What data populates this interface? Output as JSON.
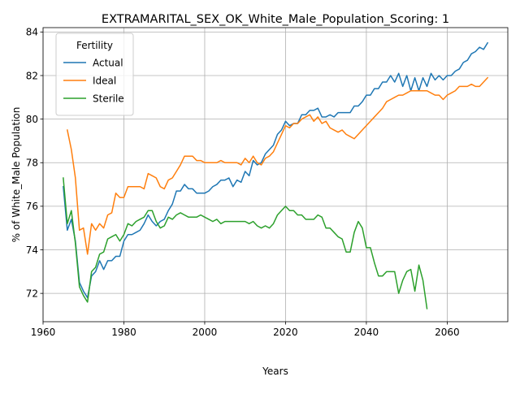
{
  "chart_data": {
    "type": "line",
    "title": "EXTRAMARITAL_SEX_OK_White_Male_Population_Scoring: 1",
    "xlabel": "Years",
    "ylabel": "% of White_Male Population",
    "xlim": [
      1960,
      2075
    ],
    "ylim": [
      70.7,
      84.2
    ],
    "xticks": [
      1960,
      1980,
      2000,
      2020,
      2040,
      2060
    ],
    "xtick_labels": [
      "1960",
      "1980",
      "2000",
      "2020",
      "2040",
      "2060"
    ],
    "yticks": [
      72,
      74,
      76,
      78,
      80,
      82,
      84
    ],
    "ytick_labels": [
      "72",
      "74",
      "76",
      "78",
      "80",
      "82",
      "84"
    ],
    "grid": true,
    "legend": {
      "title": "Fertility",
      "position": "upper-left"
    },
    "series": [
      {
        "name": "Actual",
        "color": "#1f77b4",
        "x": [
          1965,
          1966,
          1967,
          1968,
          1969,
          1970,
          1971,
          1972,
          1973,
          1974,
          1975,
          1976,
          1977,
          1978,
          1979,
          1980,
          1981,
          1982,
          1983,
          1984,
          1985,
          1986,
          1987,
          1988,
          1989,
          1990,
          1991,
          1992,
          1993,
          1994,
          1995,
          1996,
          1997,
          1998,
          1999,
          2000,
          2001,
          2002,
          2003,
          2004,
          2005,
          2006,
          2007,
          2008,
          2009,
          2010,
          2011,
          2012,
          2013,
          2014,
          2015,
          2016,
          2017,
          2018,
          2019,
          2020,
          2021,
          2022,
          2023,
          2024,
          2025,
          2026,
          2027,
          2028,
          2029,
          2030,
          2031,
          2032,
          2033,
          2034,
          2035,
          2036,
          2037,
          2038,
          2039,
          2040,
          2041,
          2042,
          2043,
          2044,
          2045,
          2046,
          2047,
          2048,
          2049,
          2050,
          2051,
          2052,
          2053,
          2054,
          2055,
          2056,
          2057,
          2058,
          2059,
          2060,
          2061,
          2062,
          2063,
          2064,
          2065,
          2066,
          2067,
          2068,
          2069,
          2070
        ],
        "y": [
          76.9,
          74.9,
          75.4,
          74.4,
          72.5,
          72.1,
          71.8,
          72.8,
          73.0,
          73.5,
          73.1,
          73.5,
          73.5,
          73.7,
          73.7,
          74.4,
          74.7,
          74.7,
          74.8,
          74.9,
          75.2,
          75.6,
          75.3,
          75.1,
          75.3,
          75.4,
          75.8,
          76.1,
          76.7,
          76.7,
          77.0,
          76.8,
          76.8,
          76.6,
          76.6,
          76.6,
          76.7,
          76.9,
          77.0,
          77.2,
          77.2,
          77.3,
          76.9,
          77.2,
          77.1,
          77.6,
          77.4,
          78.1,
          77.9,
          78.0,
          78.4,
          78.6,
          78.8,
          79.3,
          79.5,
          79.9,
          79.7,
          79.8,
          79.8,
          80.2,
          80.2,
          80.4,
          80.4,
          80.5,
          80.1,
          80.1,
          80.2,
          80.1,
          80.3,
          80.3,
          80.3,
          80.3,
          80.6,
          80.6,
          80.8,
          81.1,
          81.1,
          81.4,
          81.4,
          81.7,
          81.7,
          82.0,
          81.7,
          82.1,
          81.5,
          82.0,
          81.3,
          81.9,
          81.3,
          81.9,
          81.5,
          82.1,
          81.8,
          82.0,
          81.8,
          82.0,
          82.0,
          82.2,
          82.3,
          82.6,
          82.7,
          83.0,
          83.1,
          83.3,
          83.2,
          83.5
        ]
      },
      {
        "name": "Ideal",
        "color": "#ff7f0e",
        "x": [
          1966,
          1967,
          1968,
          1969,
          1970,
          1971,
          1972,
          1973,
          1974,
          1975,
          1976,
          1977,
          1978,
          1979,
          1980,
          1981,
          1982,
          1983,
          1984,
          1985,
          1986,
          1987,
          1988,
          1989,
          1990,
          1991,
          1992,
          1993,
          1994,
          1995,
          1996,
          1997,
          1998,
          1999,
          2000,
          2001,
          2002,
          2003,
          2004,
          2005,
          2006,
          2007,
          2008,
          2009,
          2010,
          2011,
          2012,
          2013,
          2014,
          2015,
          2016,
          2017,
          2018,
          2019,
          2020,
          2021,
          2022,
          2023,
          2024,
          2025,
          2026,
          2027,
          2028,
          2029,
          2030,
          2031,
          2032,
          2033,
          2034,
          2035,
          2036,
          2037,
          2038,
          2039,
          2040,
          2041,
          2042,
          2043,
          2044,
          2045,
          2046,
          2047,
          2048,
          2049,
          2050,
          2051,
          2052,
          2053,
          2054,
          2055,
          2056,
          2057,
          2058,
          2059,
          2060,
          2061,
          2062,
          2063,
          2064,
          2065,
          2066,
          2067,
          2068,
          2069,
          2070
        ],
        "y": [
          79.5,
          78.6,
          77.3,
          74.9,
          75.0,
          73.8,
          75.2,
          74.9,
          75.2,
          75.0,
          75.6,
          75.7,
          76.6,
          76.4,
          76.4,
          76.9,
          76.9,
          76.9,
          76.9,
          76.8,
          77.5,
          77.4,
          77.3,
          76.9,
          76.8,
          77.2,
          77.3,
          77.6,
          77.9,
          78.3,
          78.3,
          78.3,
          78.1,
          78.1,
          78.0,
          78.0,
          78.0,
          78.0,
          78.1,
          78.0,
          78.0,
          78.0,
          78.0,
          77.9,
          78.2,
          78.0,
          78.3,
          78.0,
          77.9,
          78.2,
          78.3,
          78.5,
          78.9,
          79.3,
          79.7,
          79.6,
          79.8,
          79.8,
          80.0,
          80.1,
          80.2,
          79.9,
          80.1,
          79.8,
          79.9,
          79.6,
          79.5,
          79.4,
          79.5,
          79.3,
          79.2,
          79.1,
          79.3,
          79.5,
          79.7,
          79.9,
          80.1,
          80.3,
          80.5,
          80.8,
          80.9,
          81.0,
          81.1,
          81.1,
          81.2,
          81.3,
          81.3,
          81.3,
          81.3,
          81.3,
          81.2,
          81.1,
          81.1,
          80.9,
          81.1,
          81.2,
          81.3,
          81.5,
          81.5,
          81.5,
          81.6,
          81.5,
          81.5,
          81.7,
          81.9
        ]
      },
      {
        "name": "Sterile",
        "color": "#2ca02c",
        "x": [
          1965,
          1966,
          1967,
          1968,
          1969,
          1970,
          1971,
          1972,
          1973,
          1974,
          1975,
          1976,
          1977,
          1978,
          1979,
          1980,
          1981,
          1982,
          1983,
          1984,
          1985,
          1986,
          1987,
          1988,
          1989,
          1990,
          1991,
          1992,
          1993,
          1994,
          1995,
          1996,
          1997,
          1998,
          1999,
          2000,
          2001,
          2002,
          2003,
          2004,
          2005,
          2006,
          2007,
          2008,
          2009,
          2010,
          2011,
          2012,
          2013,
          2014,
          2015,
          2016,
          2017,
          2018,
          2019,
          2020,
          2021,
          2022,
          2023,
          2024,
          2025,
          2026,
          2027,
          2028,
          2029,
          2030,
          2031,
          2032,
          2033,
          2034,
          2035,
          2036,
          2037,
          2038,
          2039,
          2040,
          2041,
          2042,
          2043,
          2044,
          2045,
          2046,
          2047,
          2048,
          2049,
          2050,
          2051,
          2052,
          2053,
          2054,
          2055
        ],
        "y": [
          77.3,
          75.2,
          75.8,
          74.3,
          72.3,
          71.9,
          71.6,
          73.0,
          73.2,
          73.8,
          73.9,
          74.5,
          74.6,
          74.7,
          74.4,
          74.7,
          75.2,
          75.1,
          75.3,
          75.4,
          75.5,
          75.8,
          75.8,
          75.3,
          75.0,
          75.1,
          75.5,
          75.4,
          75.6,
          75.7,
          75.6,
          75.5,
          75.5,
          75.5,
          75.6,
          75.5,
          75.4,
          75.3,
          75.4,
          75.2,
          75.3,
          75.3,
          75.3,
          75.3,
          75.3,
          75.3,
          75.2,
          75.3,
          75.1,
          75.0,
          75.1,
          75.0,
          75.2,
          75.6,
          75.8,
          76.0,
          75.8,
          75.8,
          75.6,
          75.6,
          75.4,
          75.4,
          75.4,
          75.6,
          75.5,
          75.0,
          75.0,
          74.8,
          74.6,
          74.5,
          73.9,
          73.9,
          74.8,
          75.3,
          75.0,
          74.1,
          74.1,
          73.4,
          72.8,
          72.8,
          73.0,
          73.0,
          73.0,
          72.0,
          72.6,
          73.0,
          73.1,
          72.1,
          73.3,
          72.6,
          71.3
        ]
      }
    ]
  }
}
